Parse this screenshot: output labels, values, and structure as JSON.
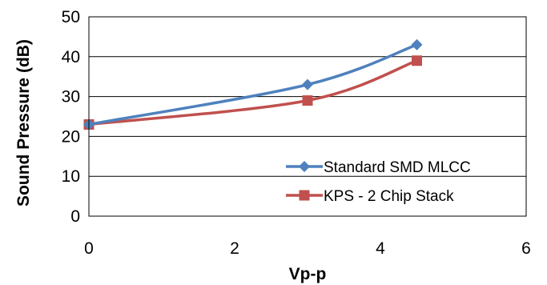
{
  "chart_data": {
    "type": "line",
    "title": "",
    "xlabel": "Vp-p",
    "ylabel": "Sound Pressure (dB)",
    "xlim": [
      0,
      6
    ],
    "ylim": [
      0,
      50
    ],
    "x_ticks": [
      "0",
      "2",
      "4",
      "6"
    ],
    "y_ticks": [
      "0",
      "10",
      "20",
      "30",
      "40",
      "50"
    ],
    "grid": "horizontal",
    "legend_position": "bottom-right",
    "series": [
      {
        "name": "Standard SMD MLCC",
        "color": "#4F81BD",
        "marker": "diamond",
        "x": [
          0,
          3,
          4.5
        ],
        "values": [
          23,
          33,
          43
        ]
      },
      {
        "name": "KPS - 2 Chip Stack",
        "color": "#C0504D",
        "marker": "square",
        "x": [
          0,
          3,
          4.5
        ],
        "values": [
          23,
          29,
          39
        ]
      }
    ]
  }
}
